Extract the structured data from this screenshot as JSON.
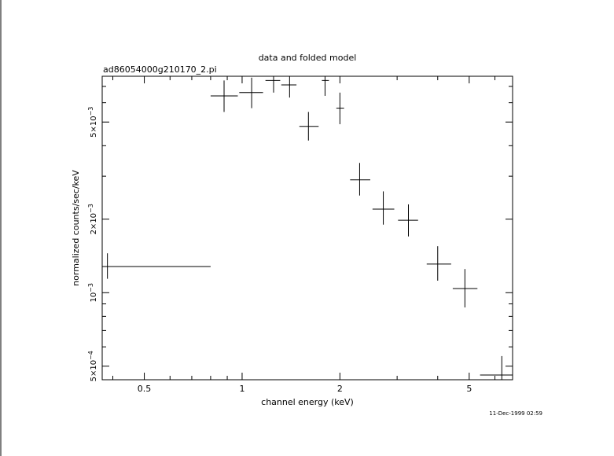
{
  "chart_data": {
    "type": "scatter",
    "title": "data and folded model",
    "subtitle": "ad86054000g210170_2.pi",
    "xlabel": "channel energy (keV)",
    "ylabel": "normalized counts/sec/keV",
    "timestamp": "11-Dec-1999 02:59",
    "x_scale": "log",
    "y_scale": "log",
    "xlim": [
      0.371,
      6.8
    ],
    "ylim": [
      0.00044,
      0.0077
    ],
    "x_ticks": [
      {
        "value": 0.5,
        "label": "0.5"
      },
      {
        "value": 1,
        "label": "1"
      },
      {
        "value": 2,
        "label": "2"
      },
      {
        "value": 5,
        "label": "5"
      }
    ],
    "y_ticks": [
      {
        "value": 0.0005,
        "mantissa": "5×10",
        "exp": "−4"
      },
      {
        "value": 0.001,
        "mantissa": "10",
        "exp": "−3"
      },
      {
        "value": 0.002,
        "mantissa": "2×10",
        "exp": "−3"
      },
      {
        "value": 0.005,
        "mantissa": "5×10",
        "exp": "−3"
      }
    ],
    "grid": false,
    "series": [
      {
        "style": "crosses with error bars",
        "points": [
          {
            "x": 0.385,
            "xlo": 0.372,
            "xhi": 0.8,
            "y": 0.00128,
            "ylo": 0.00114,
            "yhi": 0.00145
          },
          {
            "x": 0.88,
            "xlo": 0.8,
            "xhi": 0.97,
            "y": 0.0064,
            "ylo": 0.0055,
            "yhi": 0.0074
          },
          {
            "x": 1.07,
            "xlo": 0.98,
            "xhi": 1.16,
            "y": 0.0066,
            "ylo": 0.0057,
            "yhi": 0.0076
          },
          {
            "x": 1.25,
            "xlo": 1.18,
            "xhi": 1.31,
            "y": 0.0074,
            "ylo": 0.0066,
            "yhi": 0.0077
          },
          {
            "x": 1.4,
            "xlo": 1.32,
            "xhi": 1.47,
            "y": 0.0071,
            "ylo": 0.0063,
            "yhi": 0.0077
          },
          {
            "x": 1.6,
            "xlo": 1.5,
            "xhi": 1.72,
            "y": 0.0048,
            "ylo": 0.0042,
            "yhi": 0.0055
          },
          {
            "x": 1.8,
            "xlo": 1.76,
            "xhi": 1.85,
            "y": 0.0074,
            "ylo": 0.0064,
            "yhi": 0.0077
          },
          {
            "x": 2.0,
            "xlo": 1.95,
            "xhi": 2.06,
            "y": 0.0057,
            "ylo": 0.0049,
            "yhi": 0.0066
          },
          {
            "x": 2.3,
            "xlo": 2.15,
            "xhi": 2.48,
            "y": 0.0029,
            "ylo": 0.0025,
            "yhi": 0.0034
          },
          {
            "x": 2.72,
            "xlo": 2.52,
            "xhi": 2.94,
            "y": 0.0022,
            "ylo": 0.0019,
            "yhi": 0.0026
          },
          {
            "x": 3.25,
            "xlo": 3.02,
            "xhi": 3.48,
            "y": 0.00198,
            "ylo": 0.0017,
            "yhi": 0.0023
          },
          {
            "x": 4.0,
            "xlo": 3.7,
            "xhi": 4.4,
            "y": 0.00131,
            "ylo": 0.00112,
            "yhi": 0.00155
          },
          {
            "x": 4.85,
            "xlo": 4.45,
            "xhi": 5.3,
            "y": 0.00104,
            "ylo": 0.00087,
            "yhi": 0.00125
          },
          {
            "x": 6.3,
            "xlo": 5.4,
            "xhi": 6.8,
            "y": 0.00046,
            "ylo": 0.00044,
            "yhi": 0.00055
          }
        ]
      }
    ]
  }
}
